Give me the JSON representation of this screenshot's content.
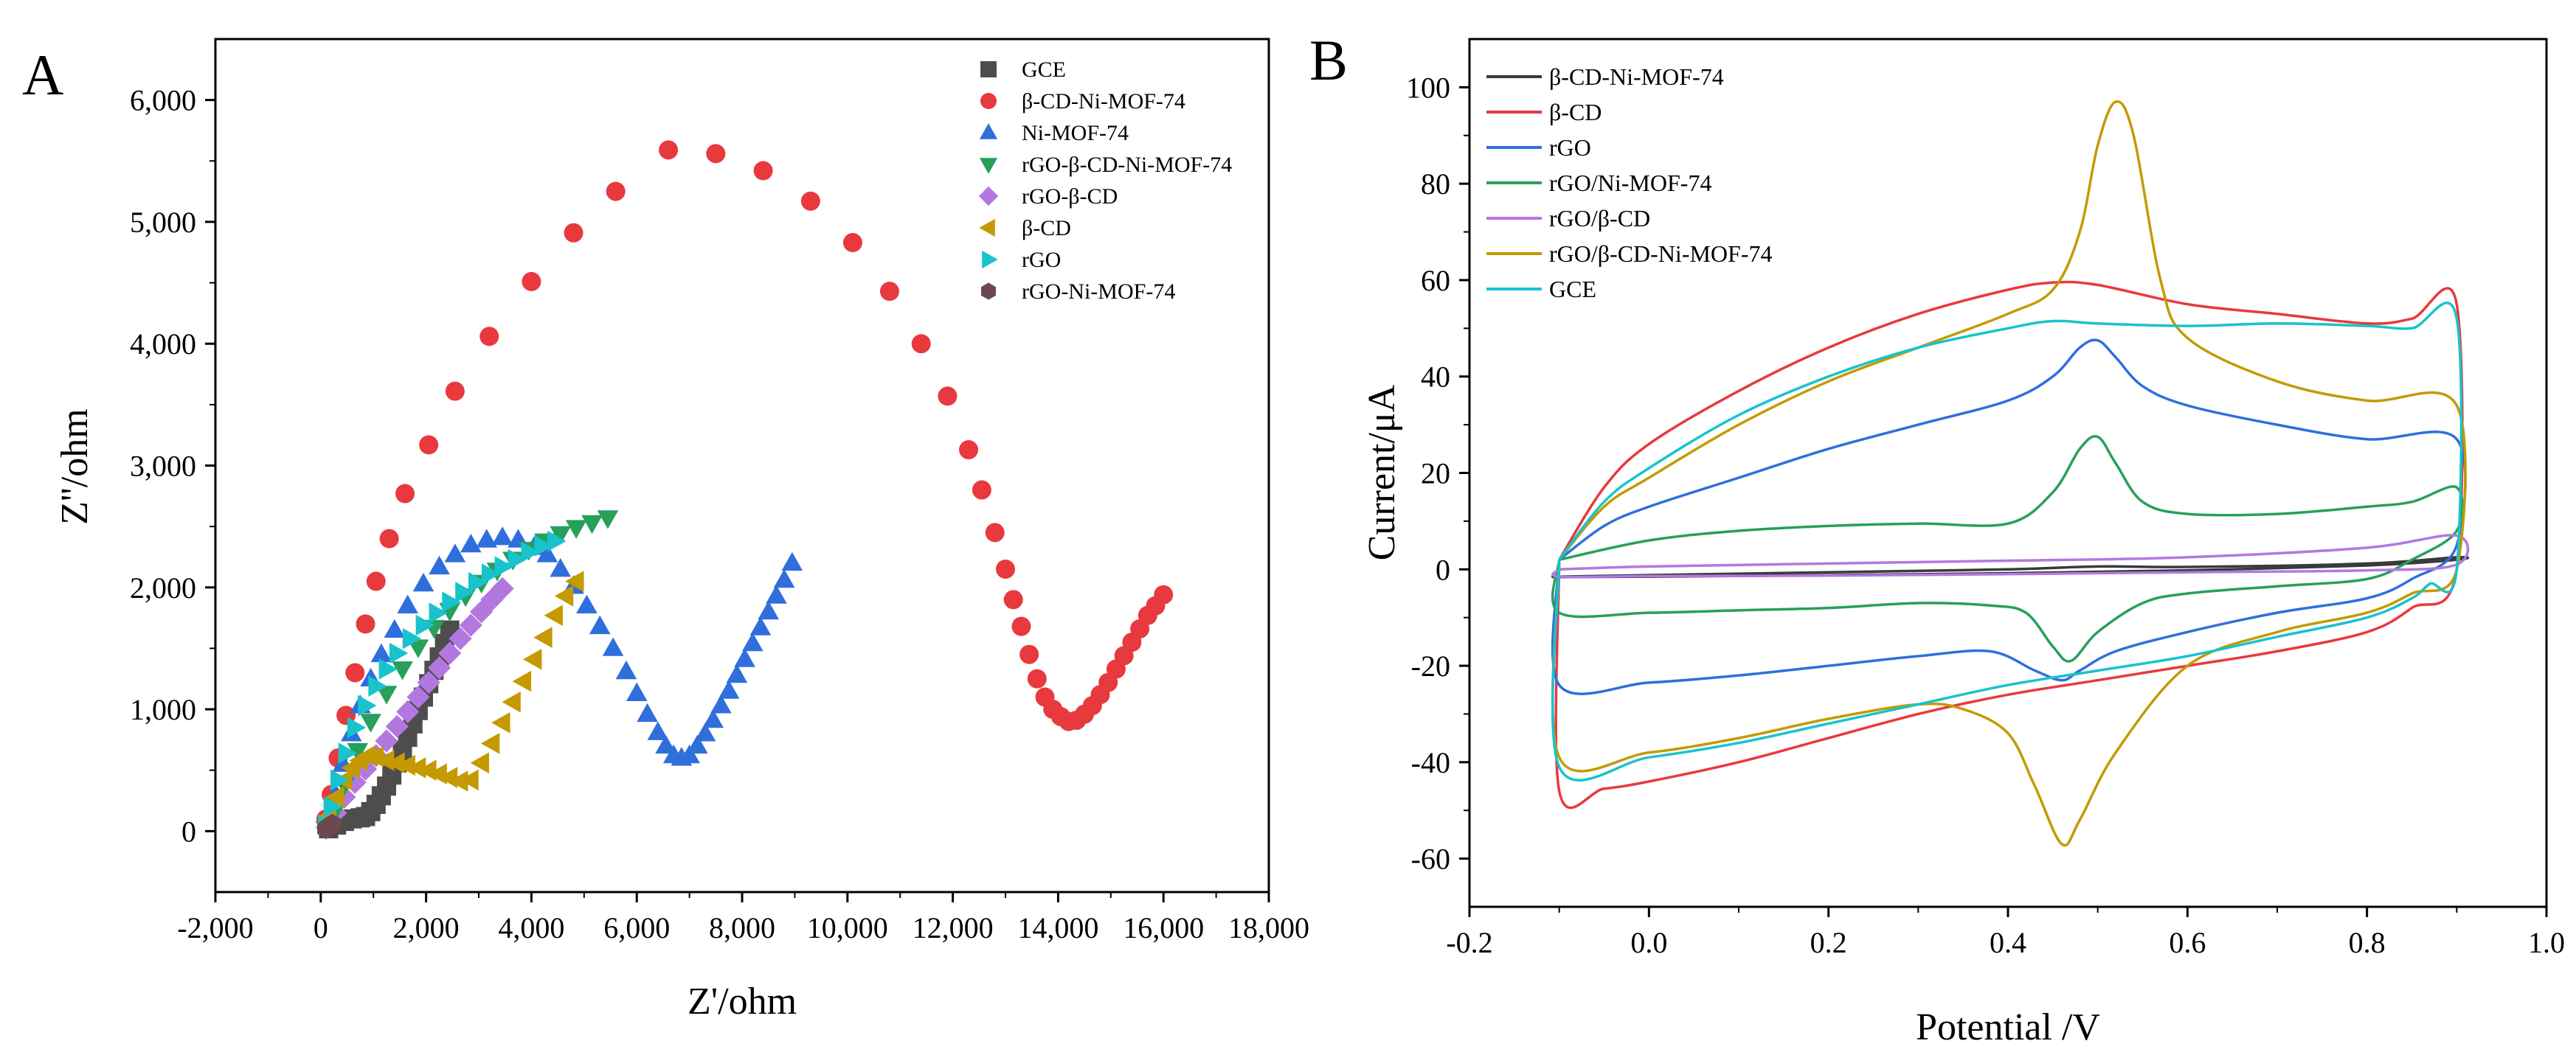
{
  "figure": {
    "panel_a_letter": "A",
    "panel_b_letter": "B"
  },
  "chart_data": [
    {
      "panel": "A",
      "type": "scatter",
      "title": "",
      "xlabel": "Z'/ohm",
      "ylabel": "Z''/ohm",
      "xlim": [
        -2000,
        18000
      ],
      "ylim": [
        -500,
        6500
      ],
      "xticks": [
        -2000,
        0,
        2000,
        4000,
        6000,
        8000,
        10000,
        12000,
        14000,
        16000,
        18000
      ],
      "xtick_labels": [
        "-2,000",
        "0",
        "2,000",
        "4,000",
        "6,000",
        "8,000",
        "10,000",
        "12,000",
        "14,000",
        "16,000",
        "18,000"
      ],
      "yticks": [
        0,
        1000,
        2000,
        3000,
        4000,
        5000,
        6000
      ],
      "ytick_labels": [
        "0",
        "1,000",
        "2,000",
        "3,000",
        "4,000",
        "5,000",
        "6,000"
      ],
      "legend_position": "top-right",
      "series": [
        {
          "name": "GCE",
          "marker": "square",
          "color": "#4d4d4d",
          "x": [
            150,
            300,
            450,
            600,
            750,
            850,
            950,
            1050,
            1150,
            1250,
            1350,
            1450,
            1550,
            1650,
            1750,
            1850,
            1950,
            2050,
            2150,
            2250,
            2350,
            2450
          ],
          "y": [
            20,
            50,
            80,
            100,
            110,
            120,
            160,
            220,
            290,
            370,
            460,
            560,
            660,
            770,
            880,
            990,
            1100,
            1210,
            1320,
            1430,
            1540,
            1650
          ]
        },
        {
          "name": "β-CD-Ni-MOF-74",
          "marker": "circle",
          "color": "#e8393e",
          "x": [
            100,
            200,
            330,
            480,
            650,
            850,
            1050,
            1300,
            1600,
            2050,
            2550,
            3200,
            4000,
            4800,
            5600,
            6600,
            7500,
            8400,
            9300,
            10100,
            10800,
            11400,
            11900,
            12300,
            12550,
            12800,
            13000,
            13150,
            13300,
            13450,
            13600,
            13750,
            13900,
            14050,
            14200,
            14350,
            14500,
            14650,
            14800,
            14950,
            15100,
            15250,
            15400,
            15550,
            15700,
            15850,
            16000
          ],
          "y": [
            100,
            300,
            600,
            950,
            1300,
            1700,
            2050,
            2400,
            2770,
            3170,
            3610,
            4060,
            4510,
            4910,
            5250,
            5590,
            5560,
            5420,
            5170,
            4830,
            4430,
            4000,
            3570,
            3130,
            2800,
            2450,
            2150,
            1900,
            1680,
            1450,
            1250,
            1100,
            1000,
            940,
            900,
            910,
            960,
            1030,
            1120,
            1220,
            1330,
            1440,
            1550,
            1660,
            1770,
            1850,
            1940
          ]
        },
        {
          "name": "Ni-MOF-74",
          "marker": "triangle-up",
          "color": "#2f6fdb",
          "x": [
            150,
            280,
            420,
            580,
            750,
            950,
            1150,
            1400,
            1650,
            1950,
            2250,
            2550,
            2850,
            3150,
            3450,
            3750,
            4050,
            4300,
            4550,
            4800,
            5050,
            5300,
            5550,
            5800,
            6000,
            6200,
            6400,
            6550,
            6700,
            6850,
            7000,
            7150,
            7300,
            7450,
            7600,
            7750,
            7900,
            8050,
            8200,
            8350,
            8500,
            8650,
            8800,
            8950
          ],
          "y": [
            100,
            300,
            550,
            800,
            1030,
            1250,
            1450,
            1650,
            1850,
            2030,
            2170,
            2270,
            2350,
            2390,
            2410,
            2390,
            2330,
            2270,
            2150,
            2010,
            1850,
            1680,
            1500,
            1310,
            1130,
            960,
            810,
            700,
            620,
            600,
            620,
            700,
            800,
            910,
            1030,
            1150,
            1280,
            1410,
            1540,
            1670,
            1800,
            1930,
            2060,
            2200
          ]
        },
        {
          "name": "rGO-β-CD-Ni-MOF-74",
          "marker": "triangle-down",
          "color": "#27a05a",
          "x": [
            100,
            250,
            450,
            700,
            950,
            1250,
            1550,
            1850,
            2150,
            2450,
            2750,
            3050,
            3350,
            3650,
            3950,
            4250,
            4550,
            4850,
            5150,
            5450
          ],
          "y": [
            20,
            150,
            380,
            660,
            900,
            1130,
            1330,
            1510,
            1670,
            1810,
            1930,
            2040,
            2140,
            2230,
            2310,
            2380,
            2440,
            2490,
            2530,
            2570
          ]
        },
        {
          "name": "rGO-β-CD",
          "marker": "diamond",
          "color": "#b378e0",
          "x": [
            120,
            280,
            450,
            650,
            850,
            1050,
            1250,
            1450,
            1650,
            1850,
            2050,
            2250,
            2450,
            2650,
            2850,
            3050,
            3250,
            3450
          ],
          "y": [
            30,
            150,
            280,
            400,
            510,
            620,
            740,
            860,
            980,
            1100,
            1220,
            1340,
            1460,
            1580,
            1690,
            1800,
            1900,
            1990
          ]
        },
        {
          "name": "β-CD",
          "marker": "triangle-left",
          "color": "#c49a00",
          "x": [
            150,
            300,
            450,
            600,
            750,
            900,
            1050,
            1250,
            1450,
            1650,
            1850,
            2050,
            2250,
            2450,
            2650,
            2850,
            3050,
            3250,
            3450,
            3650,
            3850,
            4050,
            4250,
            4450,
            4650,
            4850
          ],
          "y": [
            120,
            280,
            420,
            520,
            580,
            620,
            610,
            580,
            560,
            540,
            520,
            500,
            470,
            440,
            410,
            420,
            560,
            720,
            890,
            1060,
            1230,
            1410,
            1590,
            1770,
            1930,
            2050
          ]
        },
        {
          "name": "rGO",
          "marker": "triangle-right",
          "color": "#18c3cc",
          "x": [
            100,
            200,
            330,
            480,
            650,
            850,
            1050,
            1250,
            1450,
            1700,
            1950,
            2200,
            2450,
            2700,
            2950,
            3200,
            3450,
            3700,
            3950,
            4200,
            4450
          ],
          "y": [
            50,
            200,
            420,
            640,
            850,
            1030,
            1190,
            1330,
            1460,
            1580,
            1690,
            1790,
            1880,
            1960,
            2040,
            2110,
            2170,
            2230,
            2290,
            2340,
            2380
          ]
        },
        {
          "name": "rGO-Ni-MOF-74",
          "marker": "hexagon",
          "color": "#6b4a4f",
          "x": [
            100,
            160,
            220
          ],
          "y": [
            20,
            40,
            60
          ]
        }
      ]
    },
    {
      "panel": "B",
      "type": "line",
      "title": "",
      "xlabel": "Potential /V",
      "ylabel": "Current/μA",
      "xlim": [
        -0.2,
        1.0
      ],
      "ylim": [
        -70,
        110
      ],
      "xticks": [
        -0.2,
        0.0,
        0.2,
        0.4,
        0.6,
        0.8,
        1.0
      ],
      "xtick_labels": [
        "-0.2",
        "0.0",
        "0.2",
        "0.4",
        "0.6",
        "0.8",
        "1.0"
      ],
      "yticks": [
        -60,
        -40,
        -20,
        0,
        20,
        40,
        60,
        80,
        100
      ],
      "ytick_labels": [
        "-60",
        "-40",
        "-20",
        "0",
        "20",
        "40",
        "60",
        "80",
        "100"
      ],
      "legend_position": "top-left",
      "series": [
        {
          "name": "β-CD-Ni-MOF-74",
          "color": "#3a3a3a",
          "x": [
            -0.1,
            0.0,
            0.2,
            0.4,
            0.5,
            0.6,
            0.8,
            0.9,
            0.9,
            0.8,
            0.6,
            0.4,
            0.2,
            0.0,
            -0.1,
            -0.1
          ],
          "y": [
            -1.5,
            -1.2,
            -0.6,
            0.0,
            0.6,
            0.5,
            1.2,
            2.5,
            2.0,
            0.8,
            -0.2,
            -0.8,
            -1.2,
            -1.5,
            -1.6,
            -1.5
          ]
        },
        {
          "name": "β-CD",
          "color": "#e8393e",
          "x": [
            -0.1,
            -0.05,
            0.0,
            0.1,
            0.2,
            0.3,
            0.4,
            0.45,
            0.5,
            0.6,
            0.7,
            0.8,
            0.85,
            0.9,
            0.9,
            0.85,
            0.8,
            0.7,
            0.6,
            0.5,
            0.4,
            0.3,
            0.2,
            0.1,
            0.0,
            -0.05,
            -0.1,
            -0.1
          ],
          "y": [
            2,
            17,
            26,
            37,
            46,
            53,
            58,
            59.5,
            59,
            55,
            53,
            51,
            52,
            55,
            0,
            -8,
            -13,
            -17,
            -20,
            -23,
            -26,
            -30,
            -35,
            -40,
            -44,
            -45.5,
            -46,
            2
          ]
        },
        {
          "name": "rGO",
          "color": "#2f6fdb",
          "x": [
            -0.1,
            -0.05,
            0.0,
            0.1,
            0.2,
            0.3,
            0.4,
            0.45,
            0.48,
            0.5,
            0.52,
            0.55,
            0.6,
            0.7,
            0.8,
            0.9,
            0.9,
            0.85,
            0.8,
            0.7,
            0.6,
            0.52,
            0.48,
            0.46,
            0.43,
            0.38,
            0.3,
            0.2,
            0.1,
            0.0,
            -0.1,
            -0.1
          ],
          "y": [
            2,
            9,
            13,
            19,
            25,
            30,
            35,
            40,
            46,
            47.5,
            44,
            38,
            34,
            30,
            27,
            27,
            5,
            -2,
            -6,
            -9,
            -13,
            -17,
            -21,
            -23,
            -21,
            -17,
            -18,
            -20,
            -22,
            -23.5,
            -24,
            2
          ]
        },
        {
          "name": "rGO/Ni-MOF-74",
          "color": "#27a05a",
          "x": [
            -0.1,
            0.0,
            0.1,
            0.2,
            0.3,
            0.4,
            0.45,
            0.48,
            0.5,
            0.52,
            0.55,
            0.6,
            0.7,
            0.8,
            0.85,
            0.9,
            0.9,
            0.85,
            0.8,
            0.7,
            0.6,
            0.55,
            0.5,
            0.47,
            0.45,
            0.42,
            0.38,
            0.3,
            0.2,
            0.1,
            0.0,
            -0.1,
            -0.1
          ],
          "y": [
            2,
            6,
            8,
            9,
            9.5,
            9.5,
            16,
            25,
            27.5,
            22,
            14,
            11.5,
            11.5,
            13,
            14,
            17,
            8,
            2,
            -2,
            -3.5,
            -5,
            -7,
            -13,
            -19,
            -16,
            -9,
            -7.5,
            -7,
            -8,
            -8.5,
            -9,
            -9,
            2
          ]
        },
        {
          "name": "rGO/β-CD",
          "color": "#b378e0",
          "x": [
            -0.1,
            0.0,
            0.2,
            0.4,
            0.6,
            0.8,
            0.9,
            0.9,
            0.8,
            0.6,
            0.4,
            0.2,
            0.0,
            -0.1,
            -0.1
          ],
          "y": [
            0,
            0.6,
            1.2,
            1.8,
            2.5,
            4.5,
            7,
            1,
            -0.2,
            -0.6,
            -1.0,
            -1.3,
            -1.4,
            -1.5,
            0
          ]
        },
        {
          "name": "rGO/β-CD-Ni-MOF-74",
          "color": "#c49a00",
          "x": [
            -0.1,
            -0.05,
            0.0,
            0.1,
            0.2,
            0.3,
            0.4,
            0.45,
            0.48,
            0.5,
            0.52,
            0.54,
            0.57,
            0.6,
            0.7,
            0.8,
            0.9,
            0.9,
            0.85,
            0.8,
            0.7,
            0.6,
            0.52,
            0.48,
            0.46,
            0.43,
            0.4,
            0.35,
            0.3,
            0.2,
            0.1,
            0.0,
            -0.1,
            -0.1
          ],
          "y": [
            2,
            13,
            19,
            30,
            39,
            46,
            53,
            58,
            70,
            88,
            97,
            90,
            60,
            48,
            39,
            35,
            34,
            0,
            -5,
            -9,
            -13,
            -20,
            -38,
            -52,
            -57,
            -45,
            -34,
            -29,
            -28,
            -31,
            -35,
            -38,
            -39,
            2
          ]
        },
        {
          "name": "GCE",
          "color": "#18c3cc",
          "x": [
            -0.1,
            -0.05,
            0.0,
            0.1,
            0.2,
            0.3,
            0.4,
            0.45,
            0.5,
            0.6,
            0.7,
            0.8,
            0.85,
            0.9,
            0.9,
            0.87,
            0.85,
            0.8,
            0.7,
            0.6,
            0.5,
            0.4,
            0.3,
            0.2,
            0.1,
            0.0,
            -0.1,
            -0.1
          ],
          "y": [
            2,
            14,
            21,
            32,
            40,
            46,
            50,
            51.5,
            51,
            50.5,
            51,
            50.5,
            50,
            52,
            0,
            -3,
            -6,
            -10,
            -14,
            -18,
            -21,
            -24,
            -28,
            -32,
            -36,
            -39,
            -41,
            2
          ]
        }
      ]
    }
  ]
}
